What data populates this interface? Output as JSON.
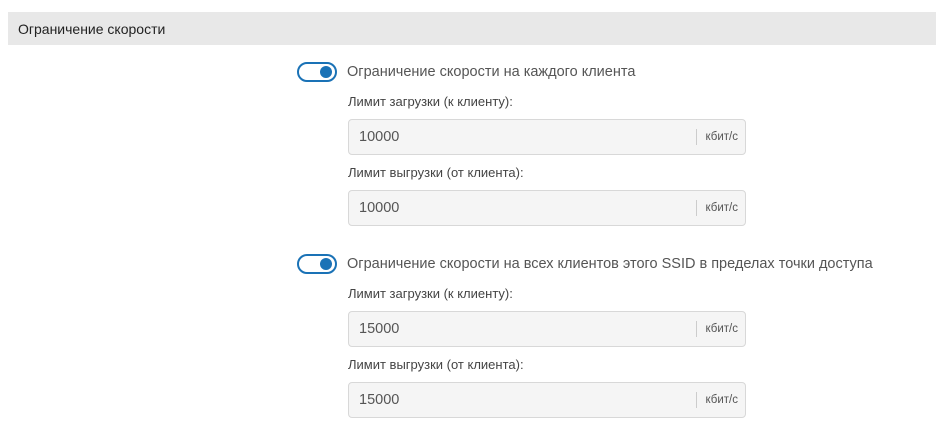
{
  "section": {
    "title": "Ограничение скорости"
  },
  "colors": {
    "accent": "#1a72b6",
    "header_bg": "#e8e8e8"
  },
  "groups": [
    {
      "toggle_label": "Ограничение скорости на каждого клиента",
      "toggle_on": true,
      "download_label": "Лимит загрузки (к клиенту):",
      "download_value": "10000",
      "upload_label": "Лимит выгрузки (от клиента):",
      "upload_value": "10000",
      "unit": "кбит/с"
    },
    {
      "toggle_label": "Ограничение скорости на всех клиентов этого SSID в пределах точки доступа",
      "toggle_on": true,
      "download_label": "Лимит загрузки (к клиенту):",
      "download_value": "15000",
      "upload_label": "Лимит выгрузки (от клиента):",
      "upload_value": "15000",
      "unit": "кбит/с"
    }
  ]
}
